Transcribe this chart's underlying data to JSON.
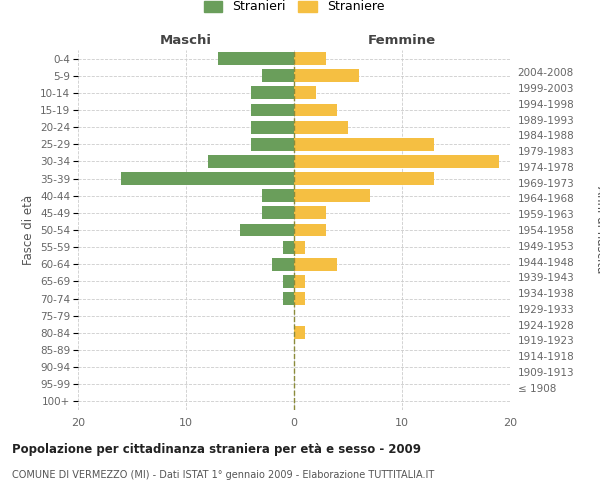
{
  "age_groups": [
    "100+",
    "95-99",
    "90-94",
    "85-89",
    "80-84",
    "75-79",
    "70-74",
    "65-69",
    "60-64",
    "55-59",
    "50-54",
    "45-49",
    "40-44",
    "35-39",
    "30-34",
    "25-29",
    "20-24",
    "15-19",
    "10-14",
    "5-9",
    "0-4"
  ],
  "birth_years": [
    "≤ 1908",
    "1909-1913",
    "1914-1918",
    "1919-1923",
    "1924-1928",
    "1929-1933",
    "1934-1938",
    "1939-1943",
    "1944-1948",
    "1949-1953",
    "1954-1958",
    "1959-1963",
    "1964-1968",
    "1969-1973",
    "1974-1978",
    "1979-1983",
    "1984-1988",
    "1989-1993",
    "1994-1998",
    "1999-2003",
    "2004-2008"
  ],
  "maschi": [
    0,
    0,
    0,
    0,
    0,
    0,
    1,
    1,
    2,
    1,
    5,
    3,
    3,
    16,
    8,
    4,
    4,
    4,
    4,
    3,
    7
  ],
  "femmine": [
    0,
    0,
    0,
    0,
    1,
    0,
    1,
    1,
    4,
    1,
    3,
    3,
    7,
    13,
    19,
    13,
    5,
    4,
    2,
    6,
    3
  ],
  "maschi_color": "#6a9e5b",
  "femmine_color": "#f5bf42",
  "background_color": "#ffffff",
  "grid_color": "#cccccc",
  "center_line_color": "#8b8b3a",
  "title": "Popolazione per cittadinanza straniera per età e sesso - 2009",
  "subtitle": "COMUNE DI VERMEZZO (MI) - Dati ISTAT 1° gennaio 2009 - Elaborazione TUTTITALIA.IT",
  "xlabel_left": "Maschi",
  "xlabel_right": "Femmine",
  "ylabel_left": "Fasce di età",
  "ylabel_right": "Anni di nascita",
  "legend_stranieri": "Stranieri",
  "legend_straniere": "Straniere",
  "xlim": [
    -20,
    20
  ],
  "xticks": [
    -20,
    -10,
    0,
    10,
    20
  ],
  "xticklabels": [
    "20",
    "10",
    "0",
    "10",
    "20"
  ]
}
